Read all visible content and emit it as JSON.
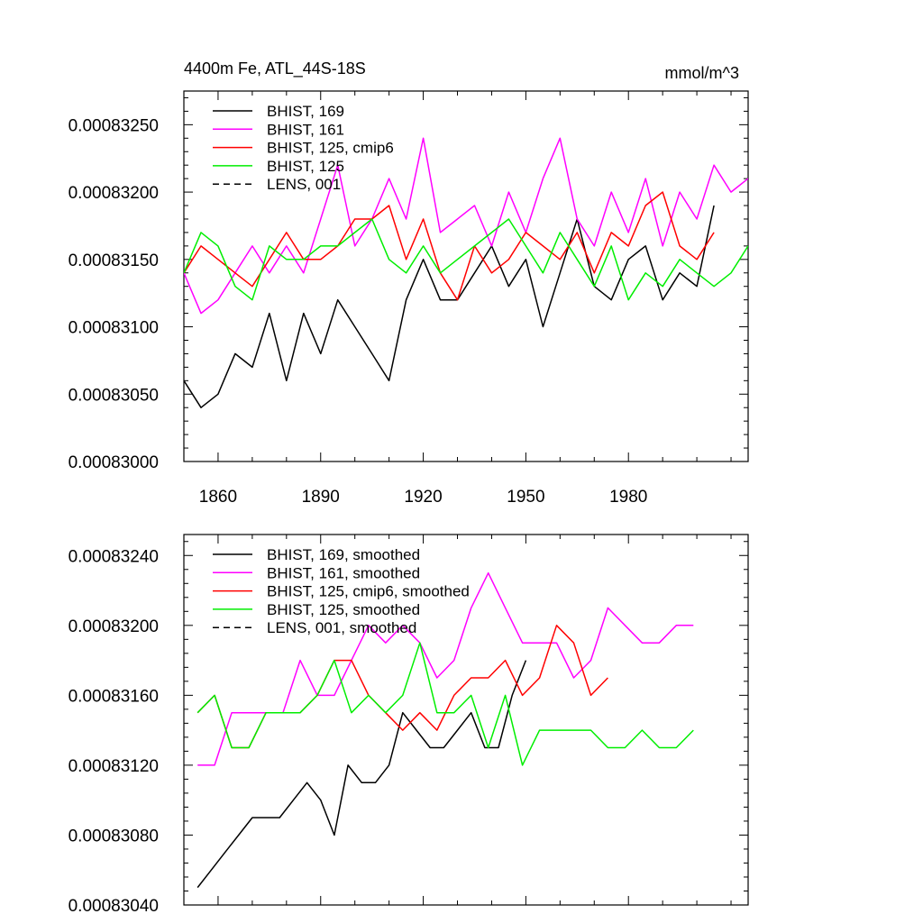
{
  "colors": {
    "black": "#000000",
    "magenta": "#ff00ff",
    "red": "#ff0000",
    "green": "#00ee00"
  },
  "chart_data": [
    {
      "type": "line",
      "title": "4400m Fe, ATL_44S-18S",
      "units_label": "mmol/m^3",
      "xlabel": "",
      "ylabel": "",
      "xlim": [
        1850,
        2015
      ],
      "ylim": [
        0.00083,
        0.00083275
      ],
      "grid": false,
      "legend_position": "top-left",
      "xticks": [
        1860,
        1890,
        1920,
        1950,
        1980
      ],
      "xtick_labels": [
        "1860",
        "1890",
        "1920",
        "1950",
        "1980"
      ],
      "yticks": [
        0.00083,
        0.0008305,
        0.000831,
        0.0008315,
        0.000832,
        0.0008325
      ],
      "ytick_labels": [
        "0.00083000",
        "0.00083050",
        "0.00083100",
        "0.00083150",
        "0.00083200",
        "0.00083250"
      ],
      "legend": [
        "BHIST, 169",
        "BHIST, 161",
        "BHIST, 125, cmip6",
        "BHIST, 125",
        "LENS, 001"
      ],
      "series": [
        {
          "name": "BHIST, 169",
          "color": "#000000",
          "dash": "solid",
          "x0": 1850,
          "step": 5,
          "values": [
            0.0008306,
            0.0008304,
            0.0008305,
            0.0008308,
            0.0008307,
            0.0008311,
            0.0008306,
            0.0008311,
            0.0008308,
            0.0008312,
            0.000831,
            0.0008308,
            0.0008306,
            0.0008312,
            0.0008315,
            0.0008312,
            0.0008312,
            0.0008314,
            0.0008316,
            0.0008313,
            0.0008315,
            0.000831,
            0.0008314,
            0.0008318,
            0.0008313,
            0.0008312,
            0.0008315,
            0.0008316,
            0.0008312,
            0.0008314,
            0.0008313,
            0.0008319
          ]
        },
        {
          "name": "BHIST, 161",
          "color": "#ff00ff",
          "dash": "solid",
          "x0": 1850,
          "step": 5,
          "values": [
            0.0008314,
            0.0008311,
            0.0008312,
            0.0008314,
            0.0008316,
            0.0008314,
            0.0008316,
            0.0008314,
            0.0008318,
            0.0008322,
            0.0008316,
            0.0008318,
            0.0008321,
            0.0008318,
            0.0008324,
            0.0008317,
            0.0008318,
            0.0008319,
            0.0008316,
            0.000832,
            0.0008317,
            0.0008321,
            0.0008324,
            0.0008318,
            0.0008316,
            0.000832,
            0.0008317,
            0.0008321,
            0.0008316,
            0.000832,
            0.0008318,
            0.0008322,
            0.000832,
            0.0008321
          ]
        },
        {
          "name": "BHIST, 125, cmip6",
          "color": "#ff0000",
          "dash": "solid",
          "x0": 1850,
          "step": 5,
          "values": [
            0.0008314,
            0.0008316,
            0.0008315,
            0.0008314,
            0.0008313,
            0.0008315,
            0.0008317,
            0.0008315,
            0.0008315,
            0.0008316,
            0.0008318,
            0.0008318,
            0.0008319,
            0.0008315,
            0.0008318,
            0.0008314,
            0.0008312,
            0.0008316,
            0.0008314,
            0.0008315,
            0.0008317,
            0.0008316,
            0.0008315,
            0.0008317,
            0.0008314,
            0.0008317,
            0.0008316,
            0.0008319,
            0.000832,
            0.0008316,
            0.0008315,
            0.0008317
          ]
        },
        {
          "name": "BHIST, 125",
          "color": "#00ee00",
          "dash": "solid",
          "x0": 1850,
          "step": 5,
          "values": [
            0.0008314,
            0.0008317,
            0.0008316,
            0.0008313,
            0.0008312,
            0.0008316,
            0.0008315,
            0.0008315,
            0.0008316,
            0.0008316,
            0.0008317,
            0.0008318,
            0.0008315,
            0.0008314,
            0.0008316,
            0.0008314,
            0.0008315,
            0.0008316,
            0.0008317,
            0.0008318,
            0.0008316,
            0.0008314,
            0.0008317,
            0.0008315,
            0.0008313,
            0.0008316,
            0.0008312,
            0.0008314,
            0.0008313,
            0.0008315,
            0.0008314,
            0.0008313,
            0.0008314,
            0.0008316
          ]
        },
        {
          "name": "LENS, 001",
          "color": "#000000",
          "dash": "dashed",
          "x0": 1850,
          "step": 5,
          "values": []
        }
      ]
    },
    {
      "type": "line",
      "title": "",
      "units_label": "",
      "xlabel": "",
      "ylabel": "",
      "xlim": [
        1850,
        2015
      ],
      "ylim": [
        0.0008304,
        0.00083252
      ],
      "grid": false,
      "legend_position": "top-left",
      "xticks": [
        1860,
        1890,
        1920,
        1950,
        1980
      ],
      "xtick_labels": [],
      "yticks": [
        0.0008304,
        0.0008308,
        0.0008312,
        0.0008316,
        0.000832,
        0.0008324
      ],
      "ytick_labels": [
        "0.00083040",
        "0.00083080",
        "0.00083120",
        "0.00083160",
        "0.00083200",
        "0.00083240"
      ],
      "legend": [
        "BHIST, 169, smoothed",
        "BHIST, 161, smoothed",
        "BHIST, 125, cmip6, smoothed",
        "BHIST, 125, smoothed",
        "LENS, 001, smoothed"
      ],
      "series": [
        {
          "name": "BHIST, 169, smoothed",
          "color": "#000000",
          "dash": "solid",
          "x0": 1854,
          "step": 4,
          "values": [
            0.0008305,
            0.0008306,
            0.0008307,
            0.0008308,
            0.0008309,
            0.0008309,
            0.0008309,
            0.000831,
            0.0008311,
            0.000831,
            0.0008308,
            0.0008312,
            0.0008311,
            0.0008311,
            0.0008312,
            0.0008315,
            0.0008314,
            0.0008313,
            0.0008313,
            0.0008314,
            0.0008315,
            0.0008313,
            0.0008313,
            0.0008316,
            0.0008318
          ]
        },
        {
          "name": "BHIST, 161, smoothed",
          "color": "#ff00ff",
          "dash": "solid",
          "x0": 1854,
          "step": 5,
          "values": [
            0.0008312,
            0.0008312,
            0.0008315,
            0.0008315,
            0.0008315,
            0.0008315,
            0.0008318,
            0.0008316,
            0.0008316,
            0.0008318,
            0.000832,
            0.0008319,
            0.000832,
            0.0008319,
            0.0008317,
            0.0008318,
            0.0008321,
            0.0008323,
            0.0008321,
            0.0008319,
            0.0008319,
            0.0008319,
            0.0008317,
            0.0008318,
            0.0008321,
            0.000832,
            0.0008319,
            0.0008319,
            0.000832,
            0.000832
          ]
        },
        {
          "name": "BHIST, 125, cmip6, smoothed",
          "color": "#ff0000",
          "dash": "solid",
          "x0": 1854,
          "step": 5,
          "values": [
            0.0008315,
            0.0008316,
            0.0008313,
            0.0008313,
            0.0008315,
            0.0008315,
            0.0008315,
            0.0008316,
            0.0008318,
            0.0008318,
            0.0008316,
            0.0008315,
            0.0008314,
            0.0008315,
            0.0008314,
            0.0008316,
            0.0008317,
            0.0008317,
            0.0008318,
            0.0008316,
            0.0008317,
            0.000832,
            0.0008319,
            0.0008316,
            0.0008317
          ]
        },
        {
          "name": "BHIST, 125, smoothed",
          "color": "#00ee00",
          "dash": "solid",
          "x0": 1854,
          "step": 5,
          "values": [
            0.0008315,
            0.0008316,
            0.0008313,
            0.0008313,
            0.0008315,
            0.0008315,
            0.0008315,
            0.0008316,
            0.0008318,
            0.0008315,
            0.0008316,
            0.0008315,
            0.0008316,
            0.0008319,
            0.0008315,
            0.0008315,
            0.0008316,
            0.0008313,
            0.0008316,
            0.0008312,
            0.0008314,
            0.0008314,
            0.0008314,
            0.0008314,
            0.0008313,
            0.0008313,
            0.0008314,
            0.0008313,
            0.0008313,
            0.0008314
          ]
        },
        {
          "name": "LENS, 001, smoothed",
          "color": "#000000",
          "dash": "dashed",
          "x0": 1854,
          "step": 5,
          "values": []
        }
      ]
    }
  ]
}
